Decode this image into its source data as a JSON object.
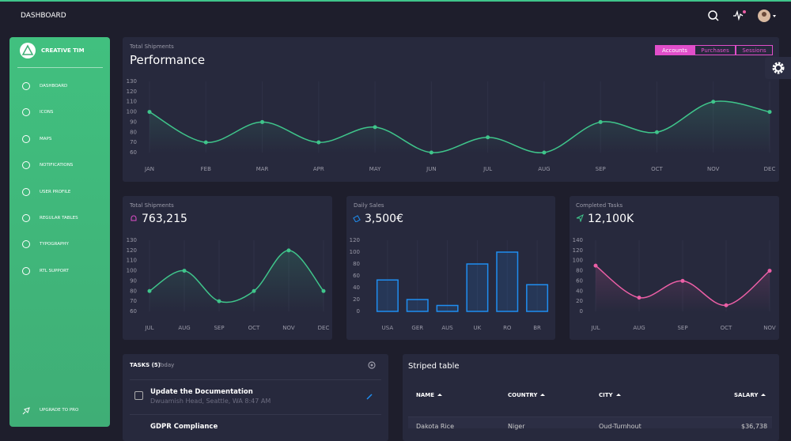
{
  "header": {
    "title": "DASHBOARD"
  },
  "sidebar": {
    "brand": "CREATIVE TIM",
    "items": [
      "DASHBOARD",
      "ICONS",
      "MAPS",
      "NOTIFICATIONS",
      "USER PROFILE",
      "REGULAR TABLES",
      "TYPOGRAPHY",
      "RTL SUPPORT"
    ],
    "upgrade": "UPGRADE TO PRO"
  },
  "tabs": [
    "Accounts",
    "Purchases",
    "Sessions"
  ],
  "chart_data": [
    {
      "type": "line",
      "subtitle": "Total Shipments",
      "title": "Performance",
      "color": "#3fc58b",
      "categories": [
        "JAN",
        "FEB",
        "MAR",
        "APR",
        "MAY",
        "JUN",
        "JUL",
        "AUG",
        "SEP",
        "OCT",
        "NOV",
        "DEC"
      ],
      "values": [
        100,
        70,
        90,
        70,
        85,
        60,
        75,
        60,
        90,
        80,
        110,
        100
      ],
      "ylim": [
        60,
        130
      ],
      "yticks": [
        60,
        70,
        80,
        90,
        100,
        110,
        120,
        130
      ]
    },
    {
      "type": "line",
      "subtitle": "Total Shipments",
      "title": "763,215",
      "color": "#3fc58b",
      "categories": [
        "JUL",
        "AUG",
        "SEP",
        "OCT",
        "NOV",
        "DEC"
      ],
      "values": [
        80,
        100,
        70,
        80,
        120,
        80
      ],
      "ylim": [
        60,
        130
      ],
      "yticks": [
        60,
        70,
        80,
        90,
        100,
        110,
        120,
        130
      ]
    },
    {
      "type": "bar",
      "subtitle": "Daily Sales",
      "title": "3,500€",
      "color": "#1f8ef1",
      "categories": [
        "USA",
        "GER",
        "AUS",
        "UK",
        "RO",
        "BR"
      ],
      "values": [
        53,
        20,
        10,
        80,
        100,
        45
      ],
      "ylim": [
        0,
        120
      ],
      "yticks": [
        0,
        20,
        40,
        60,
        80,
        100,
        120
      ]
    },
    {
      "type": "line",
      "subtitle": "Completed Tasks",
      "title": "12,100K",
      "color": "#ec5fa6",
      "categories": [
        "JUL",
        "AUG",
        "SEP",
        "OCT",
        "NOV"
      ],
      "values": [
        90,
        27,
        60,
        12,
        80
      ],
      "ylim": [
        0,
        140
      ],
      "yticks": [
        0,
        20,
        40,
        60,
        80,
        100,
        120,
        140
      ]
    }
  ],
  "tasks": {
    "title": "TASKS (5)",
    "subtitle": "Today",
    "items": [
      {
        "title": "Update the Documentation",
        "detail": "Dwuamish Head, Seattle, WA 8:47 AM"
      },
      {
        "title": "GDPR Compliance"
      }
    ]
  },
  "table": {
    "title": "Striped table",
    "columns": [
      "NAME",
      "COUNTRY",
      "CITY",
      "SALARY"
    ],
    "rows": [
      [
        "Dakota Rice",
        "Niger",
        "Oud-Turnhout",
        "$36,738"
      ]
    ]
  }
}
